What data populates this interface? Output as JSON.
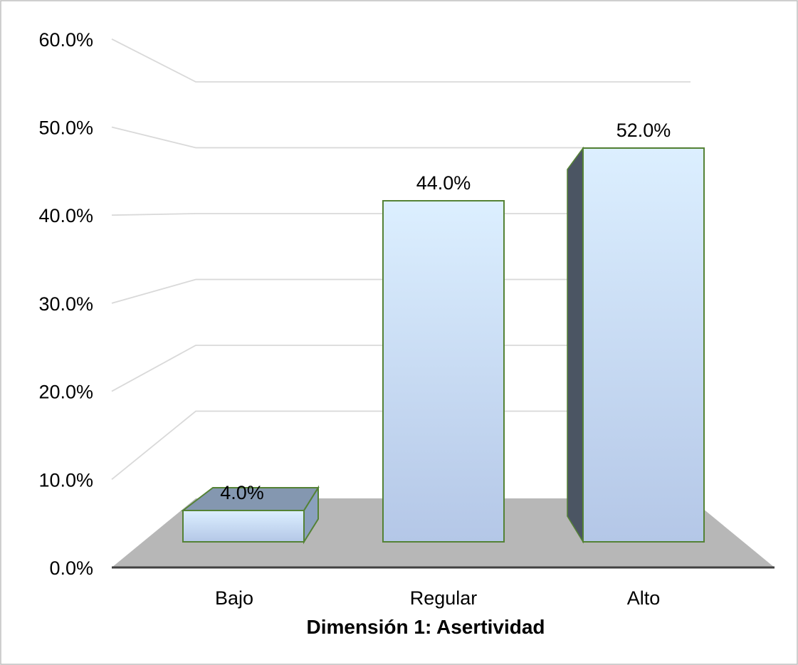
{
  "chart_data": {
    "type": "bar",
    "style": "3d-column",
    "title": "",
    "xlabel": "Dimensión 1: Asertividad",
    "ylabel": "",
    "categories": [
      "Bajo",
      "Regular",
      "Alto"
    ],
    "values": [
      4.0,
      44.0,
      52.0
    ],
    "data_labels": [
      "4.0%",
      "44.0%",
      "52.0%"
    ],
    "ylim": [
      0,
      60
    ],
    "yticks": [
      0,
      10,
      20,
      30,
      40,
      50,
      60
    ],
    "ytick_labels": [
      "0.0%",
      "10.0%",
      "20.0%",
      "30.0%",
      "40.0%",
      "50.0%",
      "60.0%"
    ],
    "grid": true,
    "legend": "none",
    "colors": {
      "bar_top": "#dcefff",
      "bar_bottom": "#b4c7e7",
      "bar_outline": "#548235",
      "bar_side": "#4b5563",
      "bar_cap": "#8497b0",
      "floor": "#b7b7b7",
      "gridline": "#d9d9d9",
      "axis": "#404040"
    }
  }
}
